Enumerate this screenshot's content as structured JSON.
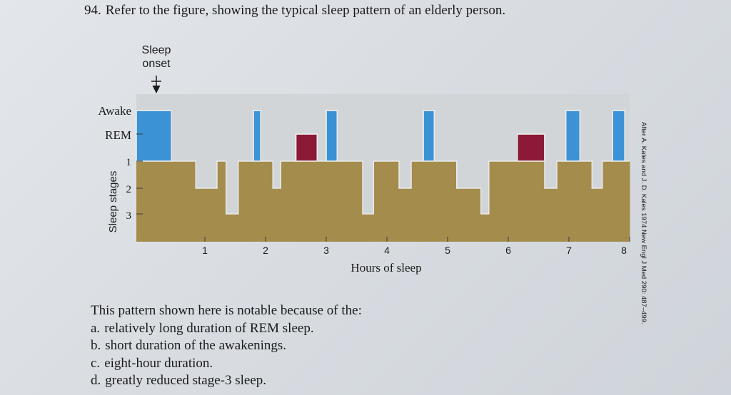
{
  "question": {
    "number": "94.",
    "stem": "Refer to the figure, showing the typical sleep pattern of an elderly person.",
    "prompt": "This pattern shown here is notable because of the:",
    "options": [
      {
        "letter": "a.",
        "text": "relatively long duration of REM sleep."
      },
      {
        "letter": "b.",
        "text": "short duration of the awakenings."
      },
      {
        "letter": "c.",
        "text": "eight-hour duration."
      },
      {
        "letter": "d.",
        "text": "greatly reduced stage-3 sleep."
      }
    ]
  },
  "chart_data": {
    "type": "area",
    "xlabel": "Hours of sleep",
    "ylabel": "Sleep stages",
    "x_ticks": [
      "1",
      "2",
      "3",
      "4",
      "5",
      "6",
      "7",
      "8"
    ],
    "y_ticks": [
      "Awake",
      "REM",
      "1",
      "2",
      "3"
    ],
    "xlim": [
      0,
      8.1
    ],
    "annotation": {
      "label_line1": "Sleep",
      "label_line2": "onset",
      "x": 0.3
    },
    "credit": "After A. Kales and J. D. Kales 1974 New Engl J Med 290: 487–499.",
    "colors": {
      "nrem": "#a48c4c",
      "rem": "#8c1a37",
      "awake": "#3b92d4",
      "background": "#d2d5d8"
    },
    "stage_levels": {
      "Awake": 0,
      "REM": 1,
      "1": 2,
      "2": 3,
      "3": 4
    },
    "segments": [
      {
        "start": 0.0,
        "end": 0.45,
        "stage": "Awake"
      },
      {
        "start": 0.45,
        "end": 0.85,
        "stage": "1"
      },
      {
        "start": 0.85,
        "end": 0.95,
        "stage": "2"
      },
      {
        "start": 0.95,
        "end": 1.2,
        "stage": "2"
      },
      {
        "start": 1.2,
        "end": 1.35,
        "stage": "1"
      },
      {
        "start": 1.35,
        "end": 1.55,
        "stage": "3"
      },
      {
        "start": 1.55,
        "end": 1.8,
        "stage": "1"
      },
      {
        "start": 1.8,
        "end": 1.92,
        "stage": "Awake"
      },
      {
        "start": 1.92,
        "end": 2.12,
        "stage": "1"
      },
      {
        "start": 2.12,
        "end": 2.25,
        "stage": "2"
      },
      {
        "start": 2.25,
        "end": 2.5,
        "stage": "1"
      },
      {
        "start": 2.5,
        "end": 2.85,
        "stage": "REM"
      },
      {
        "start": 2.85,
        "end": 3.0,
        "stage": "1"
      },
      {
        "start": 3.0,
        "end": 3.18,
        "stage": "Awake"
      },
      {
        "start": 3.18,
        "end": 3.6,
        "stage": "1"
      },
      {
        "start": 3.6,
        "end": 3.78,
        "stage": "3"
      },
      {
        "start": 3.78,
        "end": 4.2,
        "stage": "1"
      },
      {
        "start": 4.2,
        "end": 4.4,
        "stage": "2"
      },
      {
        "start": 4.4,
        "end": 4.6,
        "stage": "1"
      },
      {
        "start": 4.6,
        "end": 4.78,
        "stage": "Awake"
      },
      {
        "start": 4.78,
        "end": 5.15,
        "stage": "1"
      },
      {
        "start": 5.15,
        "end": 5.35,
        "stage": "2"
      },
      {
        "start": 5.35,
        "end": 5.55,
        "stage": "2"
      },
      {
        "start": 5.55,
        "end": 5.68,
        "stage": "3"
      },
      {
        "start": 5.68,
        "end": 6.15,
        "stage": "1"
      },
      {
        "start": 6.15,
        "end": 6.6,
        "stage": "REM"
      },
      {
        "start": 6.6,
        "end": 6.8,
        "stage": "2"
      },
      {
        "start": 6.8,
        "end": 6.95,
        "stage": "1"
      },
      {
        "start": 6.95,
        "end": 7.18,
        "stage": "Awake"
      },
      {
        "start": 7.18,
        "end": 7.38,
        "stage": "1"
      },
      {
        "start": 7.38,
        "end": 7.55,
        "stage": "2"
      },
      {
        "start": 7.55,
        "end": 7.72,
        "stage": "1"
      },
      {
        "start": 7.72,
        "end": 7.92,
        "stage": "Awake"
      },
      {
        "start": 7.92,
        "end": 8.1,
        "stage": "1"
      }
    ]
  }
}
